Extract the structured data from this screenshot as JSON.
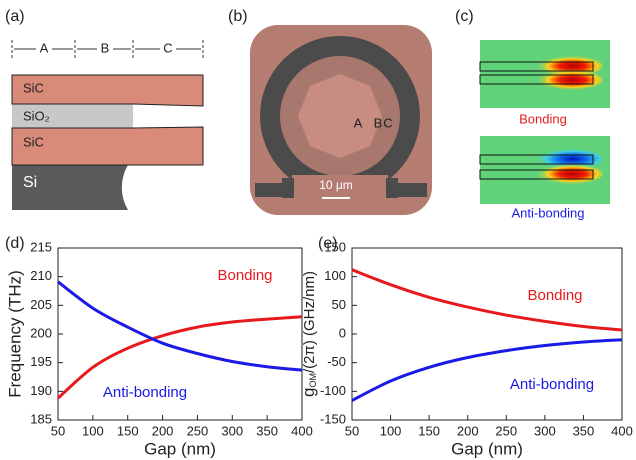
{
  "panels": {
    "a": {
      "label": "(a)",
      "dims": [
        "A",
        "B",
        "C"
      ],
      "layers": [
        "SiC",
        "SiO₂",
        "SiC",
        "Si"
      ]
    },
    "b": {
      "label": "(b)",
      "marks": [
        "A",
        "B",
        "C"
      ],
      "scale": "10 μm"
    },
    "c": {
      "label": "(c)",
      "modes": [
        "Bonding",
        "Anti-bonding"
      ]
    }
  },
  "chart_data": [
    {
      "type": "line",
      "label": "(d)",
      "xlabel": "Gap (nm)",
      "ylabel": "Frequency (THz)",
      "x": [
        50,
        100,
        150,
        200,
        250,
        300,
        350,
        400
      ],
      "series": [
        {
          "name": "Bonding",
          "color": "#e8191c",
          "values": [
            188.8,
            194.2,
            197.5,
            199.7,
            201.2,
            202.1,
            202.6,
            203.0
          ]
        },
        {
          "name": "Anti-bonding",
          "color": "#1a1ae6",
          "values": [
            209.1,
            204.5,
            201.2,
            198.4,
            196.6,
            195.2,
            194.3,
            193.7
          ]
        }
      ],
      "xlim": [
        50,
        400
      ],
      "xticks": [
        50,
        100,
        150,
        200,
        250,
        300,
        350,
        400
      ],
      "ylim": [
        185,
        215
      ],
      "yticks": [
        185,
        190,
        195,
        200,
        205,
        210,
        215
      ]
    },
    {
      "type": "line",
      "label": "(e)",
      "xlabel": "Gap (nm)",
      "ylabel": {
        "main": "g",
        "sub": "OM",
        "rest": "/(2π) (GHz/nm)"
      },
      "x": [
        50,
        100,
        150,
        200,
        250,
        300,
        350,
        400
      ],
      "series": [
        {
          "name": "Bonding",
          "color": "#e8191c",
          "values": [
            112,
            86,
            64,
            47,
            33,
            22,
            13,
            7
          ]
        },
        {
          "name": "Anti-bonding",
          "color": "#1a1ae6",
          "values": [
            -116,
            -82,
            -58,
            -41,
            -29,
            -20,
            -14,
            -10
          ]
        }
      ],
      "xlim": [
        50,
        400
      ],
      "xticks": [
        50,
        100,
        150,
        200,
        250,
        300,
        350,
        400
      ],
      "ylim": [
        -150,
        150
      ],
      "yticks": [
        -150,
        -100,
        -50,
        0,
        50,
        100,
        150
      ]
    }
  ]
}
